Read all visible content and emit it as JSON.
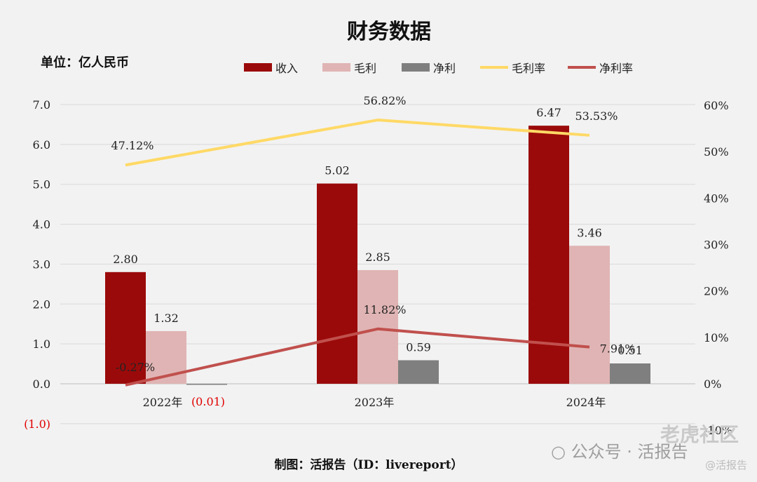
{
  "chart_data": {
    "type": "bar",
    "title": "财务数据",
    "unit_label": "单位：亿人民币",
    "footer": "制图：活报告（ID：livereport）",
    "categories": [
      "2022年",
      "2023年",
      "2024年"
    ],
    "left_axis": {
      "min": -1.0,
      "max": 7.0,
      "ticks": [
        "(1.0)",
        "0.0",
        "1.0",
        "2.0",
        "3.0",
        "4.0",
        "5.0",
        "6.0",
        "7.0"
      ]
    },
    "right_axis": {
      "min": -10,
      "max": 60,
      "ticks": [
        "-10%",
        "0%",
        "10%",
        "20%",
        "30%",
        "40%",
        "50%",
        "60%"
      ]
    },
    "bar_series": [
      {
        "name": "收入",
        "values": [
          2.8,
          5.02,
          6.47
        ],
        "labels": [
          "2.80",
          "5.02",
          "6.47"
        ],
        "color": "#9b0a0a"
      },
      {
        "name": "毛利",
        "values": [
          1.32,
          2.85,
          3.46
        ],
        "labels": [
          "1.32",
          "2.85",
          "3.46"
        ],
        "color": "#e0b4b4"
      },
      {
        "name": "净利",
        "values": [
          -0.01,
          0.59,
          0.51
        ],
        "labels": [
          "(0.01)",
          "0.59",
          "0.51"
        ],
        "color": "#7f7f7f"
      }
    ],
    "line_series": [
      {
        "name": "毛利率",
        "values": [
          47.12,
          56.82,
          53.53
        ],
        "labels": [
          "47.12%",
          "56.82%",
          "53.53%"
        ],
        "color": "#ffd966"
      },
      {
        "name": "净利率",
        "values": [
          -0.27,
          11.82,
          7.91
        ],
        "labels": [
          "-0.27%",
          "11.82%",
          "7.91%"
        ],
        "color": "#c0504d"
      }
    ],
    "legend_position": "top",
    "grid": true
  },
  "watermark": {
    "wechat": "公众号 · 活报告",
    "brand": "老虎社区",
    "handle": "@活报告",
    "wechat_icon": "wechat-icon"
  }
}
